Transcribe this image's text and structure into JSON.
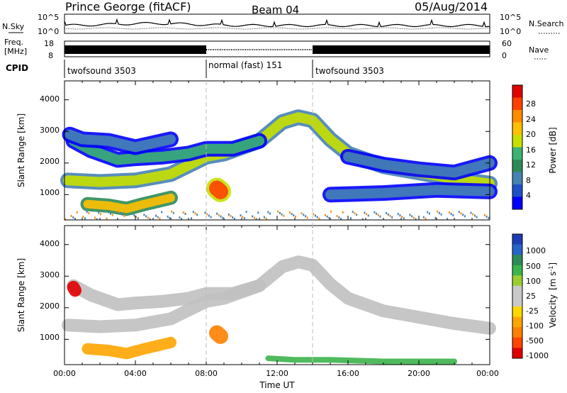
{
  "header": {
    "station": "Prince George (fitACF)",
    "beam": "Beam 04",
    "date": "05/Aug/2014"
  },
  "side_labels": {
    "nsky": "N.Sky",
    "nsearch": "N.Search",
    "freq_line1": "Freq.",
    "freq_line2": "[MHz]",
    "nave": "Nave",
    "cpid": "CPID"
  },
  "noise_axis_ticks": [
    "10^5",
    "10^0"
  ],
  "freq_axis_ticks_left": [
    "18",
    "8"
  ],
  "nave_axis_ticks_right": [
    "60",
    "0"
  ],
  "cpid_segments": [
    {
      "label": "twofsound 3503",
      "start_hour": 0,
      "end_hour": 8
    },
    {
      "label": "normal (fast) 151",
      "start_hour": 8,
      "end_hour": 14
    },
    {
      "label": "twofsound 3503",
      "start_hour": 14,
      "end_hour": 24
    }
  ],
  "x_axis": {
    "label": "Time UT",
    "ticks": [
      "00:00",
      "04:00",
      "08:00",
      "12:00",
      "16:00",
      "20:00",
      "00:00"
    ]
  },
  "y_axis": {
    "label": "Slant Range [km]",
    "ticks": [
      "1000",
      "2000",
      "3000",
      "4000"
    ]
  },
  "power_colorbar": {
    "label": "Power [dB]",
    "ticks": [
      "28",
      "24",
      "20",
      "16",
      "12",
      "8",
      "4"
    ],
    "colors": [
      "#e00000",
      "#ff4000",
      "#ff8c00",
      "#ffc000",
      "#c8e000",
      "#3cb371",
      "#2e8b57",
      "#4682b4",
      "#1e50c8",
      "#0000ff"
    ]
  },
  "velocity_colorbar": {
    "label": "Velocity [m s-1]",
    "label_text": "Velocity",
    "unit_text": "[m s",
    "unit_exp": "-1",
    "unit_close": "]",
    "ticks": [
      "1000",
      "500",
      "100",
      "25",
      "-25",
      "-100",
      "-500",
      "-1000"
    ],
    "colors": [
      "#1e3cb4",
      "#2864c8",
      "#2e8b57",
      "#3cb44b",
      "#9acd32",
      "#c8c8c8",
      "#c8c8c8",
      "#ffd700",
      "#ffa500",
      "#ff7f00",
      "#ff4500",
      "#e00000"
    ]
  },
  "chart_data": {
    "type": "heatmap",
    "x_range_hours": [
      0,
      24
    ],
    "y_range_km": [
      200,
      4600
    ],
    "power_bands": [
      {
        "name": "main band",
        "points": [
          [
            0.2,
            1450
          ],
          [
            2,
            1400
          ],
          [
            4,
            1450
          ],
          [
            6,
            1650
          ],
          [
            8,
            2200
          ],
          [
            9,
            2300
          ],
          [
            11,
            2700
          ],
          [
            12.3,
            3300
          ],
          [
            13.2,
            3450
          ],
          [
            14,
            3350
          ],
          [
            15,
            2750
          ],
          [
            16,
            2300
          ],
          [
            18,
            1900
          ],
          [
            20,
            1700
          ],
          [
            22,
            1500
          ],
          [
            24,
            1350
          ]
        ],
        "dB": 18
      },
      {
        "name": "upper arc",
        "points": [
          [
            0.5,
            2700
          ],
          [
            1.5,
            2400
          ],
          [
            3,
            2100
          ],
          [
            4,
            2150
          ],
          [
            5.5,
            2200
          ],
          [
            7,
            2300
          ],
          [
            8,
            2450
          ],
          [
            9.5,
            2450
          ],
          [
            11,
            2700
          ]
        ],
        "dB": 14
      },
      {
        "name": "upper trace",
        "points": [
          [
            0.3,
            2900
          ],
          [
            1,
            2750
          ],
          [
            2.5,
            2700
          ],
          [
            4,
            2500
          ],
          [
            6,
            2750
          ]
        ],
        "dB": 10
      },
      {
        "name": "near range",
        "points": [
          [
            1.3,
            700
          ],
          [
            2.5,
            650
          ],
          [
            3.5,
            550
          ],
          [
            4.5,
            700
          ],
          [
            6,
            900
          ]
        ],
        "dB": 22
      },
      {
        "name": "hot spot",
        "points": [
          [
            8.6,
            1200
          ],
          [
            8.8,
            1100
          ]
        ],
        "dB": 28
      },
      {
        "name": "lower right band",
        "points": [
          [
            15,
            1000
          ],
          [
            18,
            1050
          ],
          [
            21,
            1150
          ],
          [
            24,
            1100
          ]
        ],
        "dB": 10
      },
      {
        "name": "right upper band",
        "points": [
          [
            16,
            2200
          ],
          [
            18,
            1950
          ],
          [
            20,
            1800
          ],
          [
            22,
            1700
          ],
          [
            24,
            2000
          ]
        ],
        "dB": 8
      }
    ],
    "velocity_bands": [
      {
        "name": "main band",
        "points": [
          [
            0.2,
            1450
          ],
          [
            2,
            1400
          ],
          [
            4,
            1450
          ],
          [
            6,
            1650
          ],
          [
            8,
            2200
          ],
          [
            9,
            2300
          ],
          [
            11,
            2700
          ],
          [
            12.3,
            3300
          ],
          [
            13.2,
            3450
          ],
          [
            14,
            3350
          ],
          [
            15,
            2750
          ],
          [
            16,
            2300
          ],
          [
            18,
            1900
          ],
          [
            20,
            1700
          ],
          [
            22,
            1500
          ],
          [
            24,
            1350
          ]
        ],
        "velocity": 0
      },
      {
        "name": "upper arc",
        "points": [
          [
            0.5,
            2700
          ],
          [
            1.5,
            2400
          ],
          [
            3,
            2100
          ],
          [
            4,
            2150
          ],
          [
            5.5,
            2200
          ],
          [
            7,
            2300
          ],
          [
            8,
            2450
          ],
          [
            9.5,
            2450
          ],
          [
            11,
            2700
          ]
        ],
        "velocity": 0
      },
      {
        "name": "near range",
        "points": [
          [
            1.3,
            700
          ],
          [
            2.5,
            650
          ],
          [
            3.5,
            550
          ],
          [
            4.5,
            700
          ],
          [
            6,
            900
          ]
        ],
        "velocity": -150
      },
      {
        "name": "hot spot",
        "points": [
          [
            8.6,
            1200
          ],
          [
            8.8,
            1100
          ]
        ],
        "velocity": -600
      },
      {
        "name": "red patch",
        "points": [
          [
            0.5,
            2650
          ],
          [
            0.6,
            2550
          ]
        ],
        "velocity": -900
      },
      {
        "name": "ground scatter",
        "points": [
          [
            11.5,
            400
          ],
          [
            13,
            350
          ],
          [
            15,
            350
          ],
          [
            18,
            300
          ],
          [
            22,
            300
          ]
        ],
        "velocity": 150
      }
    ]
  }
}
